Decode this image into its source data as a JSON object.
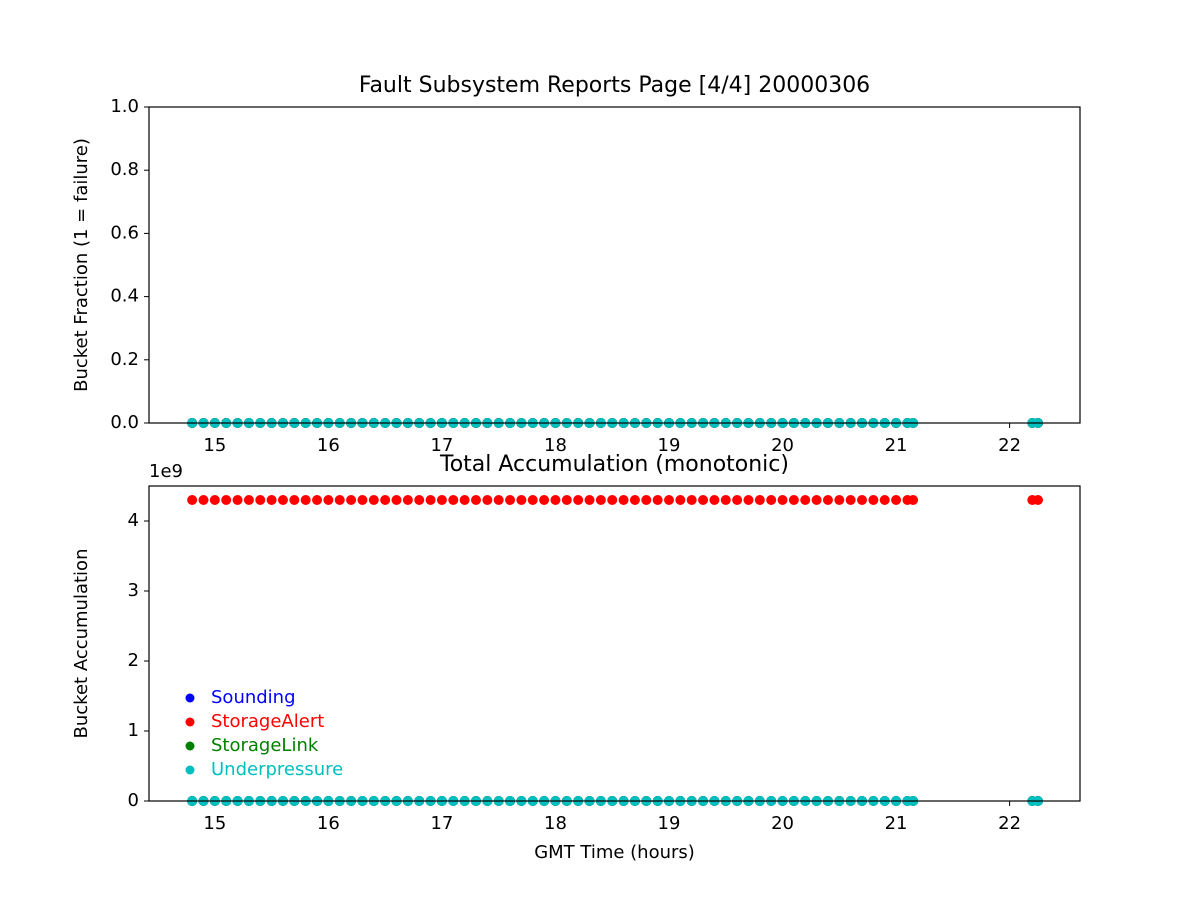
{
  "chart_data": [
    {
      "type": "scatter",
      "title": "Fault Subsystem Reports Page [4/4] 20000306",
      "ylabel": "Bucket Fraction (1 = failure)",
      "x": [
        14.8,
        14.9,
        15,
        15.1,
        15.2,
        15.3,
        15.4,
        15.5,
        15.6,
        15.7,
        15.8,
        15.9,
        16,
        16.1,
        16.2,
        16.3,
        16.4,
        16.5,
        16.6,
        16.7,
        16.8,
        16.9,
        17,
        17.1,
        17.2,
        17.3,
        17.4,
        17.5,
        17.6,
        17.7,
        17.8,
        17.9,
        18,
        18.1,
        18.2,
        18.3,
        18.4,
        18.5,
        18.6,
        18.7,
        18.8,
        18.9,
        19,
        19.1,
        19.2,
        19.3,
        19.4,
        19.5,
        19.6,
        19.7,
        19.8,
        19.9,
        20,
        20.1,
        20.2,
        20.3,
        20.4,
        20.5,
        20.6,
        20.7,
        20.8,
        20.9,
        21,
        21.1,
        21.15,
        22.2,
        22.25
      ],
      "series": [
        {
          "color": "#0000ff",
          "values": [
            0,
            0,
            0,
            0,
            0,
            0,
            0,
            0,
            0,
            0,
            0,
            0,
            0,
            0,
            0,
            0,
            0,
            0,
            0,
            0,
            0,
            0,
            0,
            0,
            0,
            0,
            0,
            0,
            0,
            0,
            0,
            0,
            0,
            0,
            0,
            0,
            0,
            0,
            0,
            0,
            0,
            0,
            0,
            0,
            0,
            0,
            0,
            0,
            0,
            0,
            0,
            0,
            0,
            0,
            0,
            0,
            0,
            0,
            0,
            0,
            0,
            0,
            0,
            0,
            0,
            0,
            0
          ]
        },
        {
          "color": "#ff0000",
          "values": [
            0,
            0,
            0,
            0,
            0,
            0,
            0,
            0,
            0,
            0,
            0,
            0,
            0,
            0,
            0,
            0,
            0,
            0,
            0,
            0,
            0,
            0,
            0,
            0,
            0,
            0,
            0,
            0,
            0,
            0,
            0,
            0,
            0,
            0,
            0,
            0,
            0,
            0,
            0,
            0,
            0,
            0,
            0,
            0,
            0,
            0,
            0,
            0,
            0,
            0,
            0,
            0,
            0,
            0,
            0,
            0,
            0,
            0,
            0,
            0,
            0,
            0,
            0,
            0,
            0,
            0,
            0
          ]
        },
        {
          "color": "#008000",
          "values": [
            0,
            0,
            0,
            0,
            0,
            0,
            0,
            0,
            0,
            0,
            0,
            0,
            0,
            0,
            0,
            0,
            0,
            0,
            0,
            0,
            0,
            0,
            0,
            0,
            0,
            0,
            0,
            0,
            0,
            0,
            0,
            0,
            0,
            0,
            0,
            0,
            0,
            0,
            0,
            0,
            0,
            0,
            0,
            0,
            0,
            0,
            0,
            0,
            0,
            0,
            0,
            0,
            0,
            0,
            0,
            0,
            0,
            0,
            0,
            0,
            0,
            0,
            0,
            0,
            0,
            0,
            0
          ]
        },
        {
          "color": "#00bfbf",
          "values": [
            0,
            0,
            0,
            0,
            0,
            0,
            0,
            0,
            0,
            0,
            0,
            0,
            0,
            0,
            0,
            0,
            0,
            0,
            0,
            0,
            0,
            0,
            0,
            0,
            0,
            0,
            0,
            0,
            0,
            0,
            0,
            0,
            0,
            0,
            0,
            0,
            0,
            0,
            0,
            0,
            0,
            0,
            0,
            0,
            0,
            0,
            0,
            0,
            0,
            0,
            0,
            0,
            0,
            0,
            0,
            0,
            0,
            0,
            0,
            0,
            0,
            0,
            0,
            0,
            0,
            0,
            0
          ]
        }
      ],
      "xlim": [
        14.42,
        22.62
      ],
      "xticks": [
        15,
        16,
        17,
        18,
        19,
        20,
        21,
        22
      ],
      "ylim": [
        0,
        1
      ],
      "yticks": [
        {
          "value": 0,
          "label": "0.0"
        },
        0.2,
        0.4,
        0.6,
        0.8,
        {
          "value": 1,
          "label": "1.0"
        }
      ]
    },
    {
      "type": "scatter",
      "title": "Total Accumulation (monotonic)",
      "ylabel": "Bucket Accumulation",
      "xlabel": "GMT Time (hours)",
      "offset_text": "1e9",
      "x": [
        14.8,
        14.9,
        15,
        15.1,
        15.2,
        15.3,
        15.4,
        15.5,
        15.6,
        15.7,
        15.8,
        15.9,
        16,
        16.1,
        16.2,
        16.3,
        16.4,
        16.5,
        16.6,
        16.7,
        16.8,
        16.9,
        17,
        17.1,
        17.2,
        17.3,
        17.4,
        17.5,
        17.6,
        17.7,
        17.8,
        17.9,
        18,
        18.1,
        18.2,
        18.3,
        18.4,
        18.5,
        18.6,
        18.7,
        18.8,
        18.9,
        19,
        19.1,
        19.2,
        19.3,
        19.4,
        19.5,
        19.6,
        19.7,
        19.8,
        19.9,
        20,
        20.1,
        20.2,
        20.3,
        20.4,
        20.5,
        20.6,
        20.7,
        20.8,
        20.9,
        21,
        21.1,
        21.15,
        22.2,
        22.25
      ],
      "series": [
        {
          "name": "Sounding",
          "color": "#0000ff",
          "values": [
            0,
            0,
            0,
            0,
            0,
            0,
            0,
            0,
            0,
            0,
            0,
            0,
            0,
            0,
            0,
            0,
            0,
            0,
            0,
            0,
            0,
            0,
            0,
            0,
            0,
            0,
            0,
            0,
            0,
            0,
            0,
            0,
            0,
            0,
            0,
            0,
            0,
            0,
            0,
            0,
            0,
            0,
            0,
            0,
            0,
            0,
            0,
            0,
            0,
            0,
            0,
            0,
            0,
            0,
            0,
            0,
            0,
            0,
            0,
            0,
            0,
            0,
            0,
            0,
            0,
            0,
            0
          ]
        },
        {
          "name": "StorageAlert",
          "color": "#ff0000",
          "values": [
            4.3,
            4.3,
            4.3,
            4.3,
            4.3,
            4.3,
            4.3,
            4.3,
            4.3,
            4.3,
            4.3,
            4.3,
            4.3,
            4.3,
            4.3,
            4.3,
            4.3,
            4.3,
            4.3,
            4.3,
            4.3,
            4.3,
            4.3,
            4.3,
            4.3,
            4.3,
            4.3,
            4.3,
            4.3,
            4.3,
            4.3,
            4.3,
            4.3,
            4.3,
            4.3,
            4.3,
            4.3,
            4.3,
            4.3,
            4.3,
            4.3,
            4.3,
            4.3,
            4.3,
            4.3,
            4.3,
            4.3,
            4.3,
            4.3,
            4.3,
            4.3,
            4.3,
            4.3,
            4.3,
            4.3,
            4.3,
            4.3,
            4.3,
            4.3,
            4.3,
            4.3,
            4.3,
            4.3,
            4.3,
            4.3,
            4.3,
            4.3
          ]
        },
        {
          "name": "StorageLink",
          "color": "#008000",
          "values": [
            0,
            0,
            0,
            0,
            0,
            0,
            0,
            0,
            0,
            0,
            0,
            0,
            0,
            0,
            0,
            0,
            0,
            0,
            0,
            0,
            0,
            0,
            0,
            0,
            0,
            0,
            0,
            0,
            0,
            0,
            0,
            0,
            0,
            0,
            0,
            0,
            0,
            0,
            0,
            0,
            0,
            0,
            0,
            0,
            0,
            0,
            0,
            0,
            0,
            0,
            0,
            0,
            0,
            0,
            0,
            0,
            0,
            0,
            0,
            0,
            0,
            0,
            0,
            0,
            0,
            0,
            0
          ]
        },
        {
          "name": "Underpressure",
          "color": "#00bfbf",
          "values": [
            0,
            0,
            0,
            0,
            0,
            0,
            0,
            0,
            0,
            0,
            0,
            0,
            0,
            0,
            0,
            0,
            0,
            0,
            0,
            0,
            0,
            0,
            0,
            0,
            0,
            0,
            0,
            0,
            0,
            0,
            0,
            0,
            0,
            0,
            0,
            0,
            0,
            0,
            0,
            0,
            0,
            0,
            0,
            0,
            0,
            0,
            0,
            0,
            0,
            0,
            0,
            0,
            0,
            0,
            0,
            0,
            0,
            0,
            0,
            0,
            0,
            0,
            0,
            0,
            0,
            0,
            0
          ]
        }
      ],
      "xlim": [
        14.42,
        22.62
      ],
      "xticks": [
        15,
        16,
        17,
        18,
        19,
        20,
        21,
        22
      ],
      "ylim": [
        0,
        4.5
      ],
      "yticks": [
        0,
        1,
        2,
        3,
        4
      ],
      "legend": "lower left"
    }
  ]
}
